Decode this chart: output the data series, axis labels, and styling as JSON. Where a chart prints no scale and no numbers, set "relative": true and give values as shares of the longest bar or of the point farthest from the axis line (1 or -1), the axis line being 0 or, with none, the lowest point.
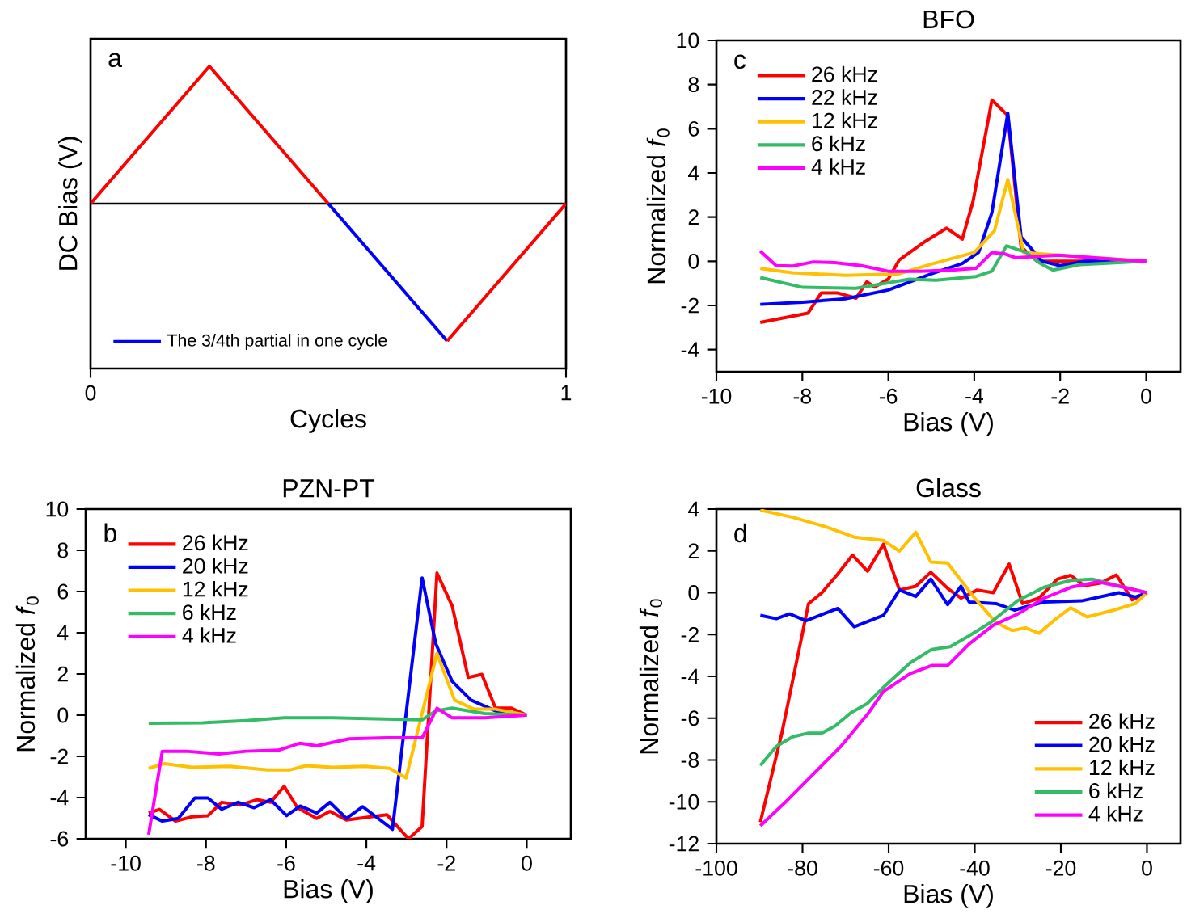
{
  "chart_data": [
    {
      "type": "line",
      "xlabel": "Cycles",
      "ylabel": "DC Bias (V)",
      "annotations": [
        "a"
      ],
      "relative": true,
      "xlim": [
        0,
        1
      ],
      "xticks": [
        0,
        1
      ],
      "tick_labels": "x",
      "legend": "bottom left",
      "ref_lines": [
        {
          "axis": "y",
          "value": 0,
          "color": "#000000"
        }
      ],
      "series": [
        {
          "color": "#ff0000",
          "x": [
            0,
            0.25,
            0.5
          ],
          "values": [
            0,
            1,
            0
          ]
        },
        {
          "name": "The 3/4th partial in one cycle",
          "color": "#0000ff",
          "x": [
            0.5,
            0.75
          ],
          "values": [
            0,
            -1
          ]
        },
        {
          "color": "#ff0000",
          "x": [
            0.75,
            1
          ],
          "values": [
            -1,
            0
          ]
        }
      ]
    },
    {
      "type": "line",
      "title": "BFO",
      "xlabel": "Bias (V)",
      "ylabel": "Normalized *f*$_{0}$",
      "annotations": [
        "c"
      ],
      "xlim": [
        -10,
        0.8
      ],
      "ylim": [
        -5,
        10
      ],
      "xticks": [
        -10,
        -8,
        -6,
        -4,
        -2,
        0
      ],
      "yticks": [
        -4,
        -2,
        0,
        2,
        4,
        6,
        8,
        10
      ],
      "legend": "top left",
      "series": [
        {
          "name": "26 kHz",
          "color": "#ff0000",
          "x": [
            -8.98,
            -7.87,
            -7.56,
            -7.19,
            -6.75,
            -6.5,
            -6.32,
            -6.0,
            -5.75,
            -5.14,
            -4.64,
            -4.28,
            -4.03,
            -3.59,
            -3.22,
            -2.91,
            -2.54,
            -2.0,
            0
          ],
          "values": [
            -2.77,
            -2.35,
            -1.43,
            -1.43,
            -1.67,
            -0.93,
            -1.17,
            -0.8,
            0.05,
            0.9,
            1.5,
            1.0,
            2.7,
            7.3,
            6.6,
            0.65,
            0,
            0,
            0
          ]
        },
        {
          "name": "22 kHz",
          "color": "#0000ff",
          "x": [
            -8.98,
            -7.99,
            -7.0,
            -6.0,
            -5.0,
            -4.28,
            -3.9,
            -3.59,
            -3.22,
            -2.91,
            -2.42,
            -2.0,
            -1.43,
            0
          ],
          "values": [
            -1.95,
            -1.85,
            -1.7,
            -1.3,
            -0.57,
            -0.1,
            0.4,
            2.2,
            6.7,
            1.1,
            0,
            -0.2,
            0,
            0
          ]
        },
        {
          "name": "12 kHz",
          "color": "#ffc000",
          "x": [
            -8.98,
            -8.24,
            -7.0,
            -5.75,
            -5.0,
            -4.0,
            -3.53,
            -3.22,
            -2.85,
            -2.04,
            0
          ],
          "values": [
            -0.33,
            -0.52,
            -0.64,
            -0.57,
            -0.13,
            0.4,
            1.38,
            3.7,
            0.4,
            0.28,
            0
          ]
        },
        {
          "name": "6 kHz",
          "color": "#33bb66",
          "x": [
            -8.98,
            -7.99,
            -6.75,
            -5.51,
            -4.89,
            -3.96,
            -3.59,
            -3.25,
            -2.79,
            -2.48,
            -2.17,
            -1.55,
            0
          ],
          "values": [
            -0.74,
            -1.18,
            -1.22,
            -0.81,
            -0.86,
            -0.69,
            -0.45,
            0.7,
            0.4,
            -0.08,
            -0.4,
            -0.15,
            0
          ]
        },
        {
          "name": "4 kHz",
          "color": "#ff00ff",
          "x": [
            -8.98,
            -8.61,
            -8.24,
            -7.74,
            -7.25,
            -6.63,
            -6.0,
            -5.26,
            -4.52,
            -3.96,
            -3.59,
            -3.28,
            -3.04,
            -2.04,
            -0.43,
            0
          ],
          "values": [
            0.46,
            -0.2,
            -0.22,
            -0.03,
            -0.06,
            -0.2,
            -0.45,
            -0.45,
            -0.4,
            -0.32,
            0.4,
            0.33,
            0.16,
            0.28,
            0.05,
            0
          ]
        }
      ]
    },
    {
      "type": "line",
      "title": "PZN-PT",
      "xlabel": "Bias (V)",
      "ylabel": "Normalized *f*$_{0}$",
      "annotations": [
        "b"
      ],
      "xlim": [
        -11,
        1.1
      ],
      "ylim": [
        -6,
        10
      ],
      "xticks": [
        -10,
        -8,
        -6,
        -4,
        -2,
        0
      ],
      "yticks": [
        -6,
        -4,
        -2,
        0,
        2,
        4,
        6,
        8,
        10
      ],
      "legend": "top left",
      "series": [
        {
          "name": "26 kHz",
          "color": "#ff0000",
          "x": [
            -9.43,
            -9.16,
            -8.76,
            -8.35,
            -7.95,
            -7.61,
            -7.14,
            -6.73,
            -6.39,
            -6.05,
            -5.72,
            -5.24,
            -4.91,
            -4.5,
            -3.89,
            -3.49,
            -2.95,
            -2.61,
            -2.24,
            -1.86,
            -1.46,
            -1.12,
            -0.78,
            -0.38,
            0
          ],
          "values": [
            -4.75,
            -4.57,
            -5.14,
            -4.93,
            -4.88,
            -4.23,
            -4.36,
            -4.1,
            -4.23,
            -3.45,
            -4.49,
            -5.01,
            -4.67,
            -5.09,
            -4.93,
            -4.83,
            -6.0,
            -5.4,
            6.9,
            5.3,
            1.83,
            1.98,
            0.34,
            0.34,
            0
          ]
        },
        {
          "name": "20 kHz",
          "color": "#0000ff",
          "x": [
            -9.43,
            -9.09,
            -8.69,
            -8.28,
            -7.95,
            -7.61,
            -7.2,
            -6.8,
            -6.39,
            -5.99,
            -5.65,
            -5.24,
            -4.91,
            -4.5,
            -4.09,
            -3.35,
            -2.61,
            -2.27,
            -1.86,
            -1.39,
            -0.78,
            0
          ],
          "values": [
            -4.83,
            -5.14,
            -5.01,
            -4.02,
            -4.02,
            -4.57,
            -4.23,
            -4.49,
            -4.1,
            -4.88,
            -4.41,
            -4.75,
            -4.23,
            -5.01,
            -4.44,
            -5.54,
            6.66,
            3.47,
            1.64,
            0.73,
            0.21,
            0
          ]
        },
        {
          "name": "12 kHz",
          "color": "#ffc000",
          "x": [
            -9.43,
            -9.03,
            -8.35,
            -7.41,
            -6.46,
            -5.92,
            -5.51,
            -4.84,
            -4.03,
            -3.42,
            -3.01,
            -2.24,
            -1.8,
            -1.32,
            -0.78,
            0
          ],
          "values": [
            -2.58,
            -2.35,
            -2.53,
            -2.48,
            -2.66,
            -2.66,
            -2.45,
            -2.53,
            -2.48,
            -2.58,
            -3.05,
            3.0,
            0.73,
            0.29,
            0.29,
            0
          ]
        },
        {
          "name": "6 kHz",
          "color": "#33bb66",
          "x": [
            -9.43,
            -8.08,
            -7.0,
            -6.05,
            -4.84,
            -3.76,
            -2.61,
            -2.27,
            -1.86,
            -1.05,
            0
          ],
          "values": [
            -0.39,
            -0.37,
            -0.26,
            -0.13,
            -0.13,
            -0.18,
            -0.23,
            0.21,
            0.34,
            0.08,
            0
          ]
        },
        {
          "name": "4 kHz",
          "color": "#ff00ff",
          "x": [
            -9.43,
            -9.09,
            -8.49,
            -7.68,
            -7.0,
            -6.19,
            -5.65,
            -5.24,
            -4.43,
            -3.49,
            -2.61,
            -2.24,
            -1.86,
            -1.05,
            0
          ],
          "values": [
            -5.8,
            -1.75,
            -1.75,
            -1.88,
            -1.75,
            -1.7,
            -1.36,
            -1.49,
            -1.15,
            -1.1,
            -1.1,
            0.34,
            -0.13,
            -0.13,
            0
          ]
        }
      ]
    },
    {
      "type": "line",
      "title": "Glass",
      "xlabel": "Bias (V)",
      "ylabel": "Normalized *f*$_{0}$",
      "annotations": [
        "d"
      ],
      "xlim": [
        -100,
        7.8
      ],
      "ylim": [
        -12,
        4
      ],
      "xticks": [
        -100,
        -80,
        -60,
        -40,
        -20,
        0
      ],
      "yticks": [
        -12,
        -10,
        -8,
        -6,
        -4,
        -2,
        0,
        2,
        4
      ],
      "legend": "bottom right",
      "series": [
        {
          "name": "26 kHz",
          "color": "#ff0000",
          "x": [
            -89.8,
            -84.8,
            -78.6,
            -75.5,
            -71.8,
            -68.4,
            -64.9,
            -61.2,
            -57.5,
            -53.7,
            -50.2,
            -46.3,
            -43.2,
            -39.4,
            -35.7,
            -32,
            -28.9,
            -25.1,
            -20.8,
            -17.7,
            -14.6,
            -10.8,
            -7.1,
            -3.4,
            0
          ],
          "values": [
            -10.97,
            -6.71,
            -0.52,
            0,
            0.9,
            1.8,
            1.03,
            2.32,
            0.13,
            0.31,
            0.98,
            0.21,
            -0.26,
            0.13,
            0,
            1.37,
            -0.52,
            -0.26,
            0.65,
            0.83,
            0.34,
            0.46,
            0.85,
            -0.34,
            0
          ]
        },
        {
          "name": "20 kHz",
          "color": "#0000ff",
          "x": [
            -89.8,
            -86.1,
            -83,
            -79.2,
            -71.8,
            -68,
            -61.2,
            -57.5,
            -53.7,
            -50.2,
            -46.3,
            -43.2,
            -41.3,
            -35.1,
            -30.8,
            -23.9,
            -15.2,
            -6.5,
            -2.7,
            0
          ],
          "values": [
            -1.08,
            -1.24,
            -1.01,
            -1.34,
            -0.75,
            -1.63,
            -1.08,
            0.13,
            -0.18,
            0.65,
            -0.57,
            0.31,
            -0.44,
            -0.52,
            -0.83,
            -0.44,
            -0.39,
            0,
            -0.21,
            0
          ]
        },
        {
          "name": "12 kHz",
          "color": "#ffc000",
          "x": [
            -89.8,
            -82.3,
            -74.9,
            -68,
            -61.2,
            -57.5,
            -53.7,
            -50.2,
            -46.3,
            -40,
            -35.1,
            -31.3,
            -28.2,
            -25.1,
            -21.4,
            -17.7,
            -13.9,
            -7.7,
            -2.7,
            0
          ],
          "values": [
            3.95,
            3.61,
            3.17,
            2.66,
            2.5,
            1.99,
            2.89,
            1.47,
            1.42,
            -0.26,
            -1.42,
            -1.81,
            -1.68,
            -1.94,
            -1.29,
            -0.72,
            -1.16,
            -0.83,
            -0.52,
            0
          ]
        },
        {
          "name": "6 kHz",
          "color": "#33bb66",
          "x": [
            -89.8,
            -86.1,
            -82.3,
            -78.6,
            -75.5,
            -72.4,
            -68.7,
            -64.9,
            -61.2,
            -55,
            -50,
            -45.7,
            -41.3,
            -36.3,
            -30.1,
            -23.9,
            -17.7,
            -12.7,
            -7.7,
            0
          ],
          "values": [
            -8.26,
            -7.35,
            -6.89,
            -6.71,
            -6.71,
            -6.37,
            -5.73,
            -5.29,
            -4.52,
            -3.35,
            -2.71,
            -2.58,
            -2.06,
            -1.42,
            -0.39,
            0.26,
            0.59,
            0.65,
            0.39,
            0
          ]
        },
        {
          "name": "4 kHz",
          "color": "#ff00ff",
          "x": [
            -89.8,
            -83.6,
            -77.4,
            -71.1,
            -64.9,
            -61.2,
            -55,
            -50,
            -46.3,
            -41.3,
            -35.7,
            -30.1,
            -23.9,
            -17.7,
            -11.4,
            -6.5,
            0
          ],
          "values": [
            -11.15,
            -9.94,
            -8.65,
            -7.35,
            -5.81,
            -4.72,
            -3.87,
            -3.48,
            -3.48,
            -2.45,
            -1.55,
            -1.03,
            -0.26,
            0.26,
            0.52,
            0.31,
            0
          ]
        }
      ]
    }
  ]
}
